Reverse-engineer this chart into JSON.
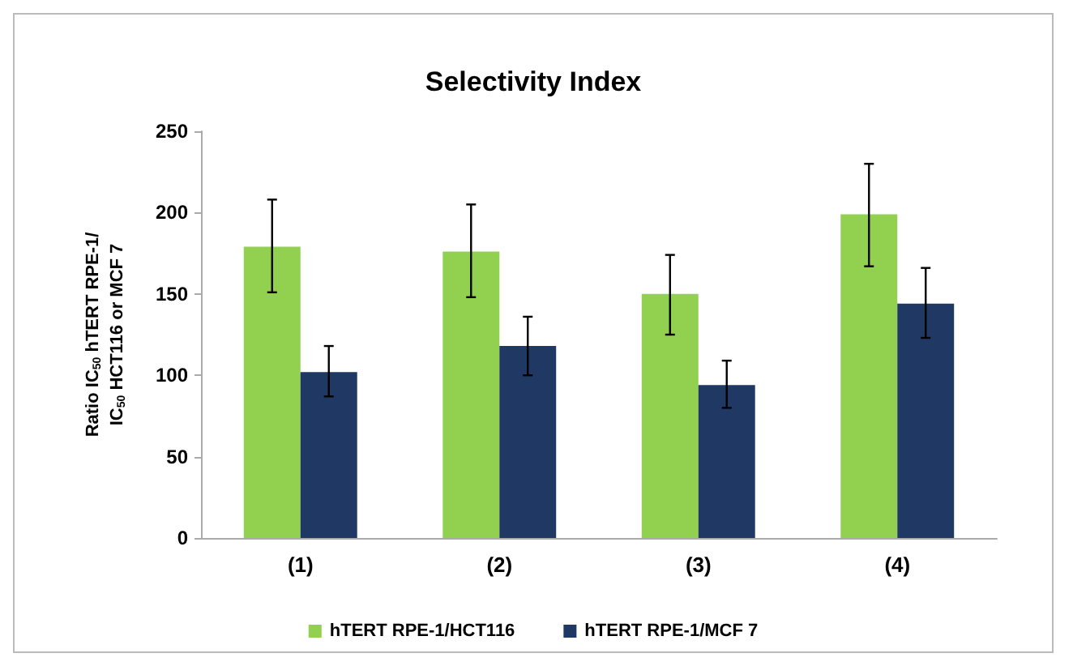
{
  "chart_data": {
    "type": "bar",
    "title": "Selectivity Index",
    "ylabel": "Ratio IC$_{50}$ hTERT RPE-1/\nIC$_{50}$ HCT116 or MCF 7",
    "categories": [
      "(1)",
      "(2)",
      "(3)",
      "(4)"
    ],
    "series": [
      {
        "name": "hTERT RPE-1/HCT116",
        "color": "#92d050",
        "values": [
          179,
          176,
          150,
          199
        ],
        "errors": [
          [
            151,
            208
          ],
          [
            148,
            205
          ],
          [
            125,
            174
          ],
          [
            167,
            230
          ]
        ]
      },
      {
        "name": "hTERT RPE-1/MCF 7",
        "color": "#203864",
        "values": [
          102,
          118,
          94,
          144
        ],
        "errors": [
          [
            87,
            118
          ],
          [
            100,
            136
          ],
          [
            80,
            109
          ],
          [
            123,
            166
          ]
        ]
      }
    ],
    "ylim": [
      0,
      250
    ],
    "yticks": [
      0,
      50,
      100,
      150,
      200,
      250
    ],
    "grid": false,
    "legend": "bottom"
  }
}
